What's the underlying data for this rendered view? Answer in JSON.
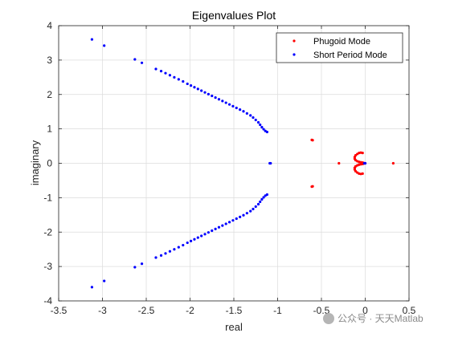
{
  "chart_data": {
    "type": "scatter",
    "title": "Eigenvalues Plot",
    "xlabel": "real",
    "ylabel": "imaginary",
    "xlim": [
      -3.5,
      0.5
    ],
    "ylim": [
      -4,
      4
    ],
    "xticks": [
      -3.5,
      -3,
      -2.5,
      -2,
      -1.5,
      -1,
      -0.5,
      0,
      0.5
    ],
    "xtick_labels": [
      "-3.5",
      "-3",
      "-2.5",
      "-2",
      "-1.5",
      "-1",
      "-0.5",
      "0",
      "0.5"
    ],
    "yticks": [
      -4,
      -3,
      -2,
      -1,
      0,
      1,
      2,
      3,
      4
    ],
    "ytick_labels": [
      "-4",
      "-3",
      "-2",
      "-1",
      "0",
      "1",
      "2",
      "3",
      "4"
    ],
    "grid": true,
    "legend": {
      "placement": "top-right"
    },
    "series": [
      {
        "name": "Phugoid Mode",
        "color": "#ff0000",
        "points": [
          [
            -0.61,
            0.68
          ],
          [
            -0.6,
            0.67
          ],
          [
            -0.61,
            -0.68
          ],
          [
            -0.6,
            -0.67
          ],
          [
            -0.3,
            0.0
          ],
          [
            0.32,
            0.0
          ],
          [
            -0.01,
            0.0
          ],
          [
            0.0,
            0.0
          ],
          [
            -0.03,
            0.3
          ],
          [
            -0.05,
            0.31
          ],
          [
            -0.07,
            0.3
          ],
          [
            -0.09,
            0.27
          ],
          [
            -0.11,
            0.23
          ],
          [
            -0.12,
            0.18
          ],
          [
            -0.12,
            0.13
          ],
          [
            -0.11,
            0.09
          ],
          [
            -0.09,
            0.06
          ],
          [
            -0.07,
            0.04
          ],
          [
            -0.05,
            0.03
          ],
          [
            -0.03,
            0.02
          ],
          [
            -0.02,
            0.01
          ],
          [
            -0.03,
            -0.3
          ],
          [
            -0.05,
            -0.31
          ],
          [
            -0.07,
            -0.3
          ],
          [
            -0.09,
            -0.27
          ],
          [
            -0.11,
            -0.23
          ],
          [
            -0.12,
            -0.18
          ],
          [
            -0.12,
            -0.13
          ],
          [
            -0.11,
            -0.09
          ],
          [
            -0.09,
            -0.06
          ],
          [
            -0.07,
            -0.04
          ],
          [
            -0.05,
            -0.03
          ],
          [
            -0.03,
            -0.02
          ],
          [
            -0.02,
            -0.01
          ]
        ]
      },
      {
        "name": "Short Period Mode",
        "color": "#0000ff",
        "points": [
          [
            -3.12,
            3.6
          ],
          [
            -2.98,
            3.42
          ],
          [
            -2.63,
            3.02
          ],
          [
            -2.55,
            2.92
          ],
          [
            -2.39,
            2.74
          ],
          [
            -2.33,
            2.68
          ],
          [
            -2.28,
            2.62
          ],
          [
            -2.23,
            2.56
          ],
          [
            -2.18,
            2.5
          ],
          [
            -2.13,
            2.44
          ],
          [
            -2.08,
            2.38
          ],
          [
            -2.03,
            2.31
          ],
          [
            -1.99,
            2.26
          ],
          [
            -1.95,
            2.21
          ],
          [
            -1.91,
            2.16
          ],
          [
            -1.87,
            2.11
          ],
          [
            -1.83,
            2.06
          ],
          [
            -1.79,
            2.01
          ],
          [
            -1.75,
            1.96
          ],
          [
            -1.71,
            1.91
          ],
          [
            -1.67,
            1.86
          ],
          [
            -1.63,
            1.81
          ],
          [
            -1.59,
            1.76
          ],
          [
            -1.55,
            1.71
          ],
          [
            -1.51,
            1.66
          ],
          [
            -1.47,
            1.61
          ],
          [
            -1.43,
            1.56
          ],
          [
            -1.39,
            1.51
          ],
          [
            -1.35,
            1.45
          ],
          [
            -1.31,
            1.39
          ],
          [
            -1.28,
            1.33
          ],
          [
            -1.25,
            1.26
          ],
          [
            -1.22,
            1.19
          ],
          [
            -1.2,
            1.12
          ],
          [
            -1.18,
            1.05
          ],
          [
            -1.16,
            0.99
          ],
          [
            -1.14,
            0.94
          ],
          [
            -1.12,
            0.91
          ],
          [
            -1.08,
            0.0
          ],
          [
            -1.09,
            0.0
          ],
          [
            -0.01,
            0.0
          ],
          [
            0.0,
            0.0
          ],
          [
            -3.12,
            -3.6
          ],
          [
            -2.98,
            -3.42
          ],
          [
            -2.63,
            -3.02
          ],
          [
            -2.55,
            -2.92
          ],
          [
            -2.39,
            -2.74
          ],
          [
            -2.33,
            -2.68
          ],
          [
            -2.28,
            -2.62
          ],
          [
            -2.23,
            -2.56
          ],
          [
            -2.18,
            -2.5
          ],
          [
            -2.13,
            -2.44
          ],
          [
            -2.08,
            -2.38
          ],
          [
            -2.03,
            -2.31
          ],
          [
            -1.99,
            -2.26
          ],
          [
            -1.95,
            -2.21
          ],
          [
            -1.91,
            -2.16
          ],
          [
            -1.87,
            -2.11
          ],
          [
            -1.83,
            -2.06
          ],
          [
            -1.79,
            -2.01
          ],
          [
            -1.75,
            -1.96
          ],
          [
            -1.71,
            -1.91
          ],
          [
            -1.67,
            -1.86
          ],
          [
            -1.63,
            -1.81
          ],
          [
            -1.59,
            -1.76
          ],
          [
            -1.55,
            -1.71
          ],
          [
            -1.51,
            -1.66
          ],
          [
            -1.47,
            -1.61
          ],
          [
            -1.43,
            -1.56
          ],
          [
            -1.39,
            -1.51
          ],
          [
            -1.35,
            -1.45
          ],
          [
            -1.31,
            -1.39
          ],
          [
            -1.28,
            -1.33
          ],
          [
            -1.25,
            -1.26
          ],
          [
            -1.22,
            -1.19
          ],
          [
            -1.2,
            -1.12
          ],
          [
            -1.18,
            -1.05
          ],
          [
            -1.16,
            -0.99
          ],
          [
            -1.14,
            -0.94
          ],
          [
            -1.12,
            -0.91
          ]
        ]
      }
    ]
  },
  "watermark": {
    "text": "公众号 · 天天Matlab"
  }
}
